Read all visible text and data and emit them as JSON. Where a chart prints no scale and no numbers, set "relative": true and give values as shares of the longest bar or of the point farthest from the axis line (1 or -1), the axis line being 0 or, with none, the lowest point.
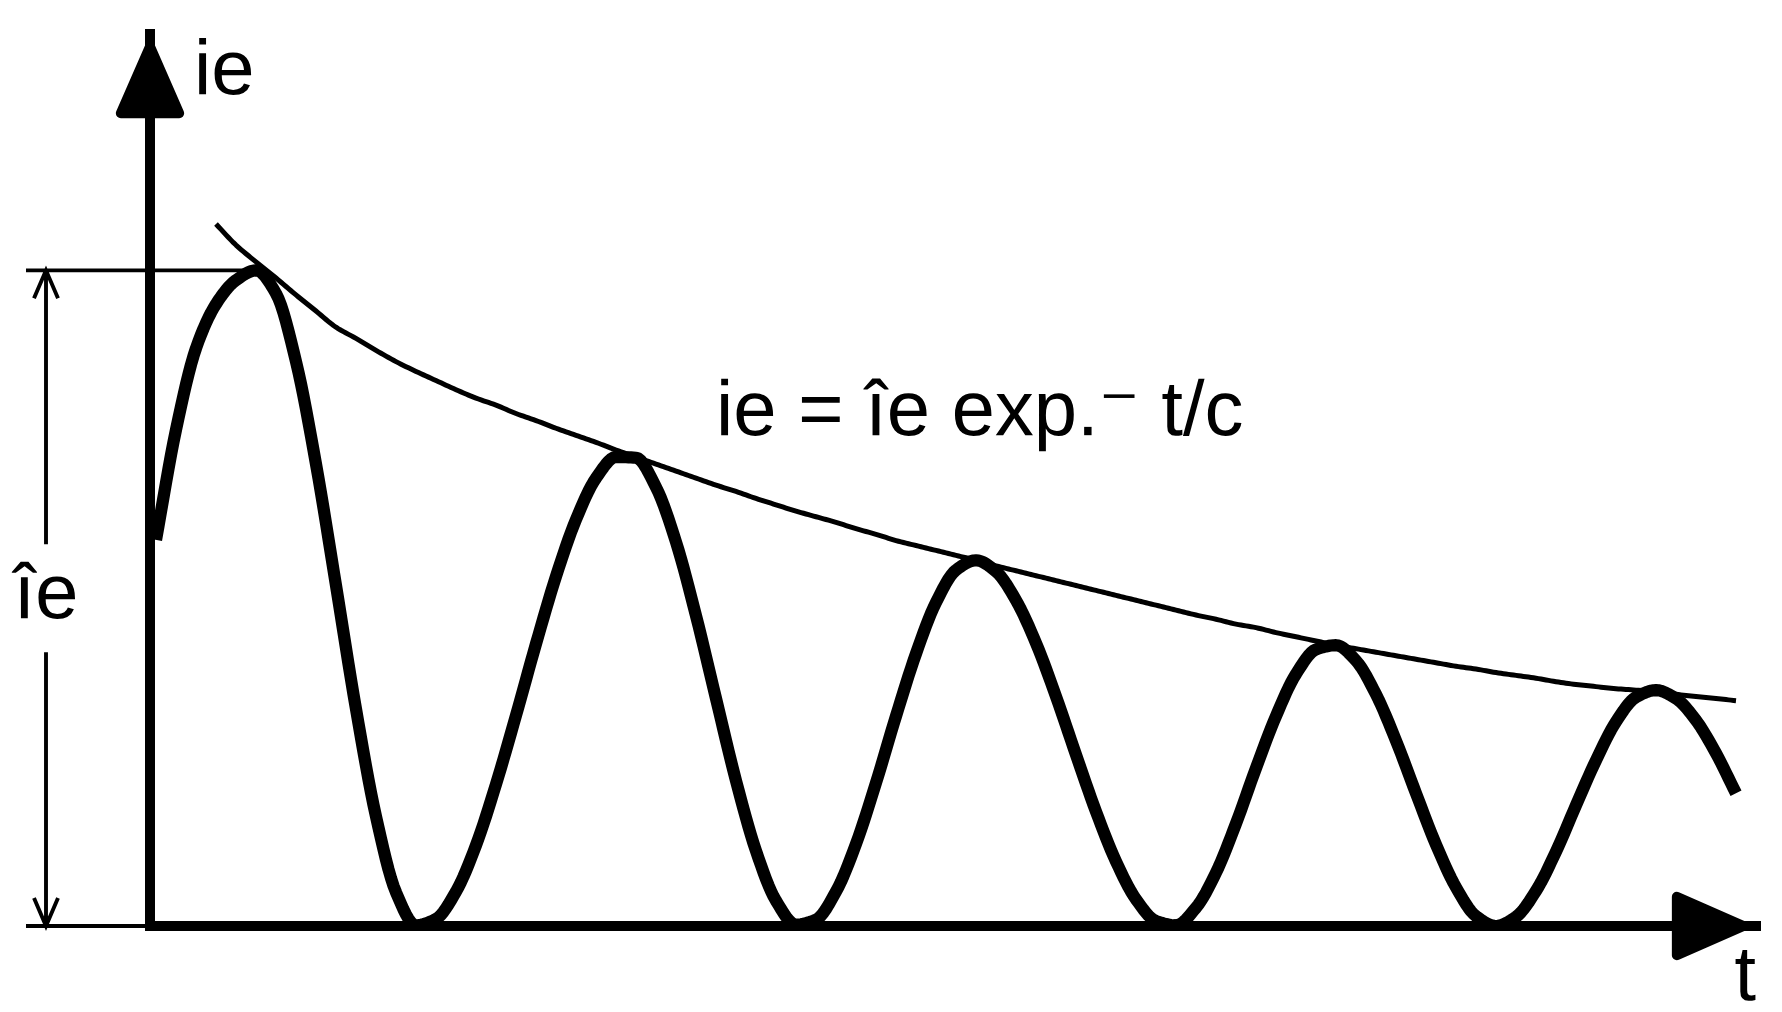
{
  "chart_data": {
    "type": "line",
    "relative": true,
    "xlabel": "t",
    "ylabel": "ie",
    "categories": [
      null,
      null,
      null,
      null,
      null,
      null,
      null,
      null,
      null,
      null,
      null,
      null,
      null,
      null,
      null,
      null,
      null,
      null,
      null,
      null,
      null,
      null,
      null,
      null,
      null,
      null,
      null,
      null,
      null,
      null,
      null,
      null,
      null,
      null,
      null,
      null,
      null,
      null,
      null,
      null,
      null,
      null,
      null,
      null,
      null,
      null,
      null,
      null,
      null,
      null,
      null,
      null,
      null,
      null,
      null,
      null,
      null,
      null,
      null,
      null,
      null,
      null,
      null,
      null,
      null,
      null,
      null,
      null,
      null,
      null,
      null,
      null,
      null,
      null,
      null,
      null,
      null,
      null,
      null,
      null
    ],
    "series": [
      {
        "color": "#000000",
        "values": [
          0.55,
          0.707,
          0.823,
          0.886,
          0.92,
          0.934,
          0.901,
          0.804,
          0.658,
          0.485,
          0.309,
          0.156,
          0.048,
          0.001,
          0.01,
          0.049,
          0.115,
          0.202,
          0.3,
          0.402,
          0.498,
          0.579,
          0.638,
          0.668,
          0.667,
          0.625,
          0.547,
          0.442,
          0.324,
          0.207,
          0.107,
          0.036,
          0.002,
          0.009,
          0.049,
          0.117,
          0.204,
          0.299,
          0.388,
          0.461,
          0.507,
          0.521,
          0.505,
          0.464,
          0.403,
          0.327,
          0.244,
          0.163,
          0.092,
          0.038,
          0.007,
          0.001,
          0.026,
          0.076,
          0.146,
          0.225,
          0.299,
          0.359,
          0.394,
          0.4,
          0.378,
          0.33,
          0.264,
          0.189,
          0.116,
          0.055,
          0.014,
          0,
          0.013,
          0.05,
          0.106,
          0.172,
          0.236,
          0.291,
          0.326,
          0.336,
          0.324,
          0.293,
          0.246,
          0.189
        ]
      },
      {
        "name": "ie = îe exp.⁻ t/c",
        "color": "#000000",
        "values": [
          null,
          null,
          null,
          1,
          0.97,
          0.946,
          0.923,
          0.899,
          0.876,
          0.853,
          0.837,
          0.82,
          0.804,
          0.79,
          0.777,
          0.764,
          0.752,
          0.742,
          0.73,
          0.72,
          0.709,
          0.699,
          0.689,
          0.678,
          0.668,
          0.658,
          0.648,
          0.638,
          0.628,
          0.619,
          0.609,
          0.6,
          0.591,
          0.583,
          0.575,
          0.566,
          0.558,
          0.549,
          0.542,
          0.535,
          0.528,
          0.521,
          0.513,
          0.506,
          0.499,
          0.492,
          0.485,
          0.478,
          0.471,
          0.464,
          0.457,
          0.45,
          0.443,
          0.437,
          0.43,
          0.425,
          0.418,
          0.412,
          0.406,
          0.4,
          0.395,
          0.39,
          0.385,
          0.38,
          0.375,
          0.37,
          0.366,
          0.361,
          0.357,
          0.353,
          0.348,
          0.344,
          0.341,
          0.338,
          0.336,
          0.333,
          0.33,
          0.327,
          0.324,
          0.321
        ]
      }
    ],
    "annotations": [
      "îe"
    ]
  }
}
